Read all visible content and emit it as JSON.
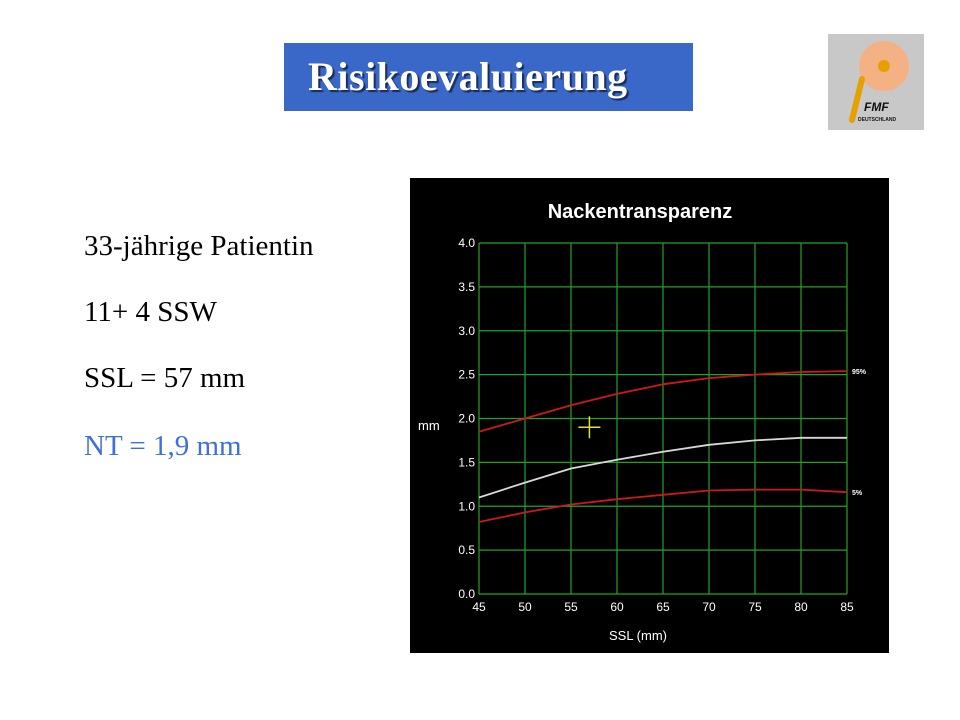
{
  "slide": {
    "title": "Risikoevaluierung",
    "logo_text": "FMF",
    "logo_subtext": "DEUTSCHLAND",
    "info_lines": [
      "33-jährige  Patientin",
      "11+ 4 SSW",
      "SSL = 57 mm",
      "NT = 1,9 mm"
    ],
    "colors": {
      "title_bg": "#3a68c9",
      "highlight": "#3f6fd8"
    }
  },
  "chart_data": {
    "type": "line",
    "title": "Nackentransparenz",
    "xlabel": "SSL (mm)",
    "ylabel": "mm",
    "x": [
      45,
      50,
      55,
      60,
      65,
      70,
      75,
      80,
      85
    ],
    "xticks": [
      "45",
      "50",
      "55",
      "60",
      "65",
      "70",
      "75",
      "80",
      "85"
    ],
    "yticks": [
      "0.0",
      "0.5",
      "1.0",
      "1.5",
      "2.0",
      "2.5",
      "3.0",
      "3.5",
      "4.0"
    ],
    "xlim": [
      45,
      85
    ],
    "ylim": [
      0,
      4
    ],
    "grid": true,
    "series": [
      {
        "name": "95%",
        "color": "#cc1a1a",
        "values": [
          1.85,
          2.0,
          2.15,
          2.28,
          2.39,
          2.46,
          2.5,
          2.53,
          2.54
        ]
      },
      {
        "name": "",
        "color": "#d8d8d8",
        "values": [
          1.1,
          1.27,
          1.43,
          1.53,
          1.62,
          1.7,
          1.75,
          1.78,
          1.78
        ]
      },
      {
        "name": "5%",
        "color": "#cc1a1a",
        "values": [
          0.82,
          0.93,
          1.02,
          1.08,
          1.13,
          1.18,
          1.19,
          1.19,
          1.16
        ]
      }
    ],
    "marker": {
      "x": 57,
      "y": 1.9,
      "symbol": "+",
      "color": "#e0e040"
    }
  }
}
